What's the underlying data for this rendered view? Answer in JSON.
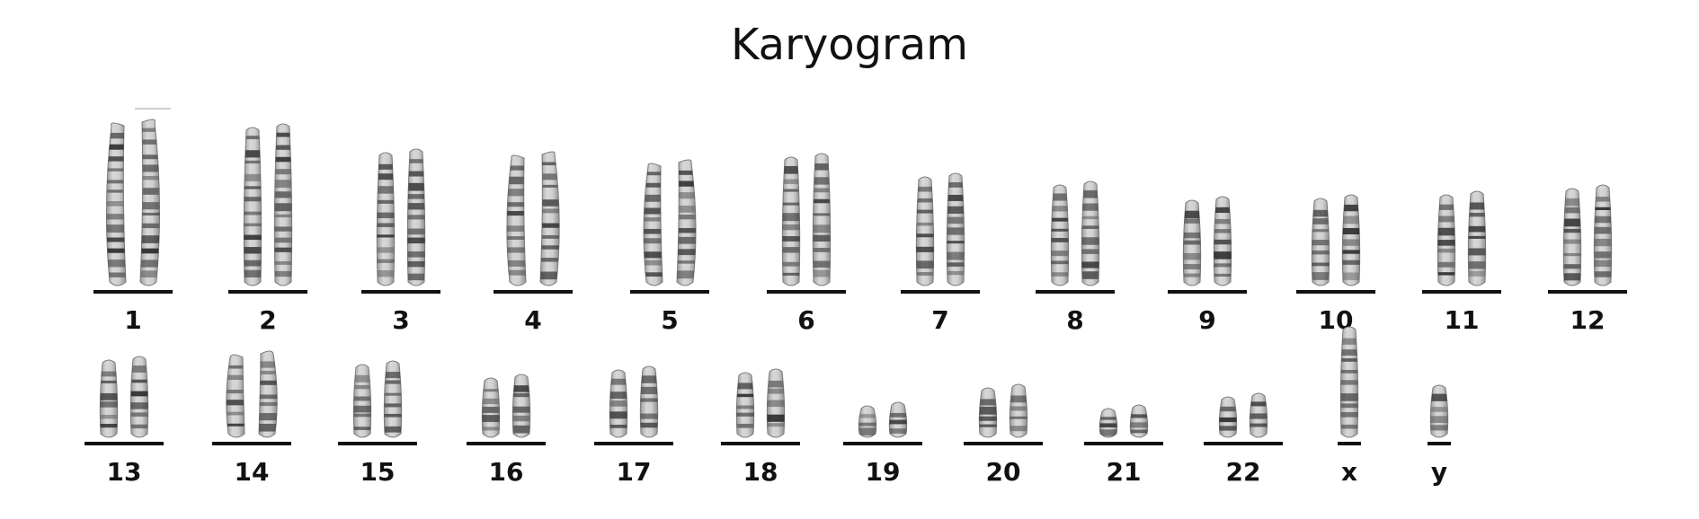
{
  "title": "Karyogram",
  "colors": {
    "band_dark": "#3a3a3a",
    "band_light": "#e2e2e2",
    "underline": "#111111"
  },
  "rows": [
    {
      "chromosomes": [
        {
          "label": "1",
          "length": 1.0,
          "bent": true
        },
        {
          "label": "2",
          "length": 0.97
        },
        {
          "label": "3",
          "length": 0.82
        },
        {
          "label": "4",
          "length": 0.8,
          "bent": true
        },
        {
          "label": "5",
          "length": 0.75,
          "bent": true
        },
        {
          "label": "6",
          "length": 0.79
        },
        {
          "label": "7",
          "length": 0.67
        },
        {
          "label": "8",
          "length": 0.62
        },
        {
          "label": "9",
          "length": 0.53
        },
        {
          "label": "10",
          "length": 0.54
        },
        {
          "label": "11",
          "length": 0.56
        },
        {
          "label": "12",
          "length": 0.6
        }
      ]
    },
    {
      "chromosomes": [
        {
          "label": "13",
          "length": 0.48
        },
        {
          "label": "14",
          "length": 0.51,
          "bent": true
        },
        {
          "label": "15",
          "length": 0.45
        },
        {
          "label": "16",
          "length": 0.37
        },
        {
          "label": "17",
          "length": 0.42
        },
        {
          "label": "18",
          "length": 0.4
        },
        {
          "label": "19",
          "length": 0.2
        },
        {
          "label": "20",
          "length": 0.31
        },
        {
          "label": "21",
          "length": 0.18
        },
        {
          "label": "22",
          "length": 0.25
        },
        {
          "label": "x",
          "length": 0.66,
          "single": true
        },
        {
          "label": "y",
          "length": 0.3,
          "single": true
        }
      ]
    }
  ]
}
